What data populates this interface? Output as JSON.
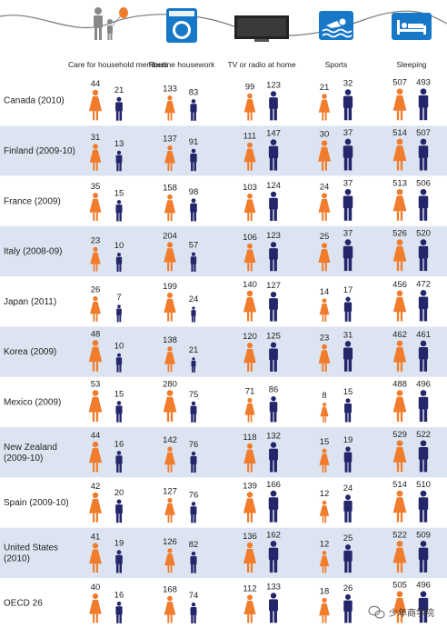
{
  "chart_data": {
    "type": "table",
    "title": "",
    "unit": "",
    "categories": [
      "Care for household members",
      "Routine housework",
      "TV or radio at home",
      "Sports",
      "Sleeping"
    ],
    "category_icons": [
      "family-icon",
      "washing-machine-icon",
      "television-icon",
      "swimming-icon",
      "bed-icon"
    ],
    "series": [
      {
        "name": "Women",
        "color": "#f07c2c"
      },
      {
        "name": "Men",
        "color": "#23266b"
      }
    ],
    "rows": [
      {
        "country": [
          "Canada (2010)"
        ],
        "values": [
          [
            44,
            21
          ],
          [
            133,
            83
          ],
          [
            99,
            123
          ],
          [
            21,
            32
          ],
          [
            507,
            493
          ]
        ]
      },
      {
        "country": [
          "Finland (2009-10)"
        ],
        "values": [
          [
            31,
            13
          ],
          [
            137,
            91
          ],
          [
            111,
            147
          ],
          [
            30,
            37
          ],
          [
            514,
            507
          ]
        ]
      },
      {
        "country": [
          "France (2009)"
        ],
        "values": [
          [
            35,
            15
          ],
          [
            158,
            98
          ],
          [
            103,
            124
          ],
          [
            24,
            37
          ],
          [
            513,
            506
          ]
        ]
      },
      {
        "country": [
          "Italy (2008-09)"
        ],
        "values": [
          [
            23,
            10
          ],
          [
            204,
            57
          ],
          [
            106,
            123
          ],
          [
            25,
            37
          ],
          [
            526,
            520
          ]
        ]
      },
      {
        "country": [
          "Japan (2011)"
        ],
        "values": [
          [
            26,
            7
          ],
          [
            199,
            24
          ],
          [
            140,
            127
          ],
          [
            14,
            17
          ],
          [
            456,
            472
          ]
        ]
      },
      {
        "country": [
          "Korea (2009)"
        ],
        "values": [
          [
            48,
            10
          ],
          [
            138,
            21
          ],
          [
            120,
            125
          ],
          [
            23,
            31
          ],
          [
            462,
            461
          ]
        ]
      },
      {
        "country": [
          "Mexico (2009)"
        ],
        "values": [
          [
            53,
            15
          ],
          [
            280,
            75
          ],
          [
            71,
            86
          ],
          [
            8,
            15
          ],
          [
            488,
            496
          ]
        ]
      },
      {
        "country": [
          "New Zealand",
          "(2009-10)"
        ],
        "values": [
          [
            44,
            16
          ],
          [
            142,
            76
          ],
          [
            118,
            132
          ],
          [
            15,
            19
          ],
          [
            529,
            522
          ]
        ]
      },
      {
        "country": [
          "Spain (2009-10)"
        ],
        "values": [
          [
            42,
            20
          ],
          [
            127,
            76
          ],
          [
            139,
            166
          ],
          [
            12,
            24
          ],
          [
            514,
            510
          ]
        ]
      },
      {
        "country": [
          "United States",
          "(2010)"
        ],
        "values": [
          [
            41,
            19
          ],
          [
            126,
            82
          ],
          [
            136,
            162
          ],
          [
            12,
            25
          ],
          [
            522,
            509
          ]
        ]
      },
      {
        "country": [
          "OECD 26"
        ],
        "values": [
          [
            40,
            16
          ],
          [
            168,
            74
          ],
          [
            112,
            133
          ],
          [
            18,
            26
          ],
          [
            505,
            496
          ]
        ]
      }
    ],
    "row_colors": [
      "#ffffff",
      "#dde4f1"
    ],
    "grid": false,
    "legend": "none"
  },
  "watermark": {
    "text": "少年商学院",
    "icon": "wechat-icon"
  }
}
